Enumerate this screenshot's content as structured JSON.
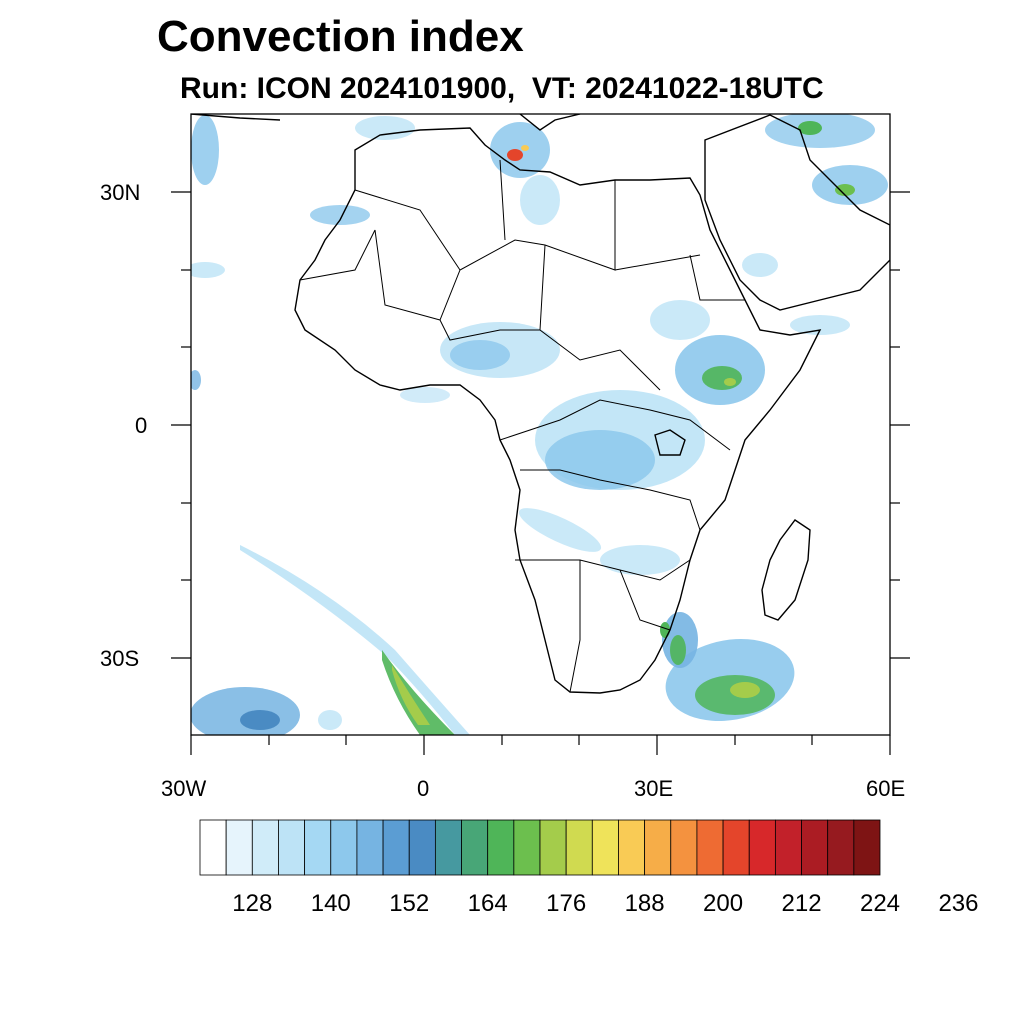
{
  "header": {
    "title": "Convection index",
    "subtitle": "Run: ICON 2024101900,  VT: 20241022-18UTC"
  },
  "map": {
    "lat_labels": [
      "30N",
      "0",
      "30S"
    ],
    "lon_labels": [
      "30W",
      "0",
      "30E",
      "60E"
    ],
    "extent": {
      "lon": [
        -30,
        60
      ],
      "lat": [
        -40,
        40
      ]
    }
  },
  "colorbar": {
    "tick_labels": [
      "128",
      "140",
      "152",
      "164",
      "176",
      "188",
      "200",
      "212",
      "224",
      "236"
    ],
    "colors": [
      "#ffffff",
      "#e6f4fc",
      "#d0ecf9",
      "#bde3f6",
      "#a5d8f3",
      "#8dc8ec",
      "#76b4e2",
      "#5b9dd3",
      "#4a8bc3",
      "#4699a0",
      "#48a677",
      "#4fb558",
      "#6cbf4e",
      "#a4cc4b",
      "#d0da50",
      "#efe35a",
      "#f9cb55",
      "#f6ad48",
      "#f4923f",
      "#ee6b33",
      "#e4452b",
      "#d7282a",
      "#c2212a",
      "#ab1c23",
      "#961a1f",
      "#7e1414"
    ]
  }
}
